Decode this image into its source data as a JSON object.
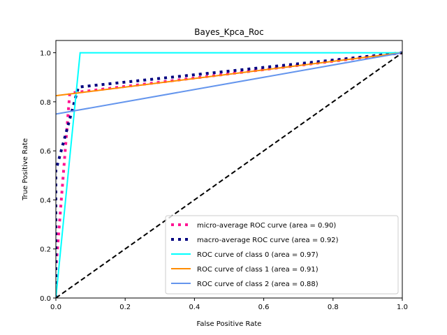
{
  "chart_data": {
    "type": "line",
    "title": "Bayes_Kpca_Roc",
    "xlabel": "False Positive Rate",
    "ylabel": "True Positive Rate",
    "xlim": [
      0.0,
      1.0
    ],
    "ylim": [
      0.0,
      1.05
    ],
    "xticks": [
      "0.0",
      "0.2",
      "0.4",
      "0.6",
      "0.8",
      "1.0"
    ],
    "yticks": [
      "0.0",
      "0.2",
      "0.4",
      "0.6",
      "0.8",
      "1.0"
    ],
    "grid": false,
    "legend_position": "lower-right",
    "series": [
      {
        "name": "micro-average ROC curve (area = 0.90)",
        "color": "#ff1493",
        "style": "dotted",
        "x": [
          0.0,
          0.0,
          0.04,
          1.0
        ],
        "y": [
          0.0,
          0.12,
          0.835,
          1.0
        ]
      },
      {
        "name": "macro-average ROC curve (area = 0.92)",
        "color": "#000080",
        "style": "dotted",
        "x": [
          0.0,
          0.0,
          0.065,
          1.0
        ],
        "y": [
          0.0,
          0.52,
          0.86,
          1.0
        ]
      },
      {
        "name": "ROC curve of class 0 (area = 0.97)",
        "color": "#00ffff",
        "style": "solid",
        "x": [
          0.0,
          0.07,
          1.0
        ],
        "y": [
          0.0,
          1.0,
          1.0
        ]
      },
      {
        "name": "ROC curve of class 1 (area = 0.91)",
        "color": "#ff8c00",
        "style": "solid",
        "x": [
          0.0,
          1.0
        ],
        "y": [
          0.825,
          1.0
        ]
      },
      {
        "name": "ROC curve of class 2 (area = 0.88)",
        "color": "#6495ed",
        "style": "solid",
        "x": [
          0.0,
          1.0
        ],
        "y": [
          0.75,
          1.0
        ]
      }
    ],
    "reference_line": {
      "color": "#000000",
      "style": "dashed",
      "x": [
        0.0,
        1.0
      ],
      "y": [
        0.0,
        1.0
      ]
    }
  }
}
